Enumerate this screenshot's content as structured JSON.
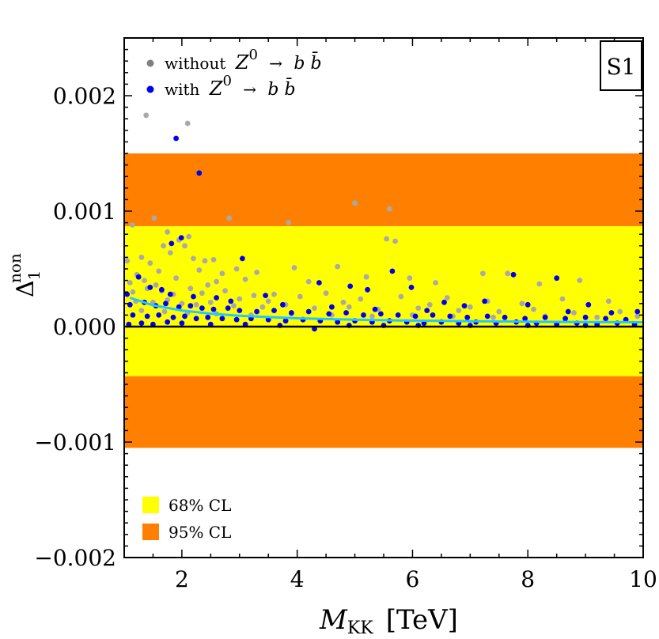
{
  "chart_data": {
    "type": "scatter",
    "title": "",
    "panel_tag": "S1",
    "xlabel": {
      "main": "M",
      "sub": "KK",
      "unit": "[TeV]"
    },
    "ylabel": {
      "main": "Δ",
      "sub": "1",
      "sup": "non"
    },
    "xlim": [
      1,
      10
    ],
    "ylim": [
      -0.002,
      0.0025
    ],
    "xticks": [
      2,
      4,
      6,
      8,
      10
    ],
    "xtick_labels": [
      "2",
      "4",
      "6",
      "8",
      "10"
    ],
    "yticks": [
      -0.002,
      -0.001,
      0.0,
      0.001,
      0.002
    ],
    "ytick_labels": [
      "−0.002",
      "−0.001",
      "0.000",
      "0.001",
      "0.002"
    ],
    "bands": [
      {
        "name": "95% CL",
        "color": "#ff8000",
        "y_from": -0.00105,
        "y_to": 0.0015
      },
      {
        "name": "68% CL",
        "color": "#ffff00",
        "y_from": -0.00043,
        "y_to": 0.00087
      }
    ],
    "reference_line": {
      "y": 0.0,
      "color": "#000000"
    },
    "curve": {
      "name": "fit",
      "color": "#22c8ff",
      "x": [
        1.1,
        1.5,
        2.0,
        2.5,
        3.0,
        4.0,
        5.0,
        6.0,
        7.0,
        8.0,
        9.0,
        10.0
      ],
      "y": [
        0.00025,
        0.000185,
        0.00014,
        0.000112,
        9.4e-05,
        7.2e-05,
        6e-05,
        5.2e-05,
        4.7e-05,
        4.3e-05,
        4e-05,
        3.8e-05
      ]
    },
    "series": [
      {
        "name": "without Z0 → b b̄",
        "color": "#a9a9a9",
        "points": [
          [
            1.38,
            0.00183
          ],
          [
            2.1,
            0.00176
          ],
          [
            1.52,
            0.00094
          ],
          [
            1.14,
            0.00088
          ],
          [
            2.82,
            0.00094
          ],
          [
            3.85,
            0.0009
          ],
          [
            5.0,
            0.00107
          ],
          [
            5.6,
            0.00102
          ],
          [
            1.75,
            0.00082
          ],
          [
            1.68,
            0.0007
          ],
          [
            1.8,
            0.00064
          ],
          [
            1.05,
            0.00057
          ],
          [
            1.3,
            0.0006
          ],
          [
            2.05,
            0.0007
          ],
          [
            2.12,
            0.00078
          ],
          [
            1.95,
            0.00075
          ],
          [
            2.2,
            0.00059
          ],
          [
            2.4,
            0.00057
          ],
          [
            2.55,
            0.00058
          ],
          [
            1.45,
            0.00055
          ],
          [
            5.55,
            0.00076
          ],
          [
            5.7,
            0.00074
          ],
          [
            1.22,
            0.00045
          ],
          [
            1.6,
            0.00048
          ],
          [
            2.3,
            0.00049
          ],
          [
            2.7,
            0.00046
          ],
          [
            2.95,
            0.0005
          ],
          [
            3.3,
            0.00047
          ],
          [
            3.95,
            0.00051
          ],
          [
            4.7,
            0.00052
          ],
          [
            7.22,
            0.00046
          ],
          [
            7.65,
            0.00046
          ],
          [
            8.2,
            0.00037
          ],
          [
            1.1,
            0.00038
          ],
          [
            1.35,
            0.0004
          ],
          [
            1.9,
            0.00042
          ],
          [
            2.6,
            0.00039
          ],
          [
            3.1,
            0.00041
          ],
          [
            4.2,
            0.00039
          ],
          [
            5.2,
            0.00043
          ],
          [
            5.95,
            0.00042
          ],
          [
            6.4,
            0.00038
          ],
          [
            8.9,
            0.0004
          ],
          [
            1.15,
            0.0003
          ],
          [
            1.4,
            0.00033
          ],
          [
            1.65,
            0.00031
          ],
          [
            1.85,
            0.00028
          ],
          [
            2.15,
            0.00033
          ],
          [
            2.35,
            0.00029
          ],
          [
            2.75,
            0.00031
          ],
          [
            3.25,
            0.00027
          ],
          [
            3.6,
            0.00028
          ],
          [
            4.05,
            0.00026
          ],
          [
            4.5,
            0.00029
          ],
          [
            5.1,
            0.00024
          ],
          [
            5.8,
            0.00026
          ],
          [
            6.6,
            0.00025
          ],
          [
            7.3,
            0.00022
          ],
          [
            8.6,
            0.00024
          ],
          [
            9.4,
            0.00022
          ],
          [
            1.2,
            0.00022
          ],
          [
            1.5,
            0.00021
          ],
          [
            1.75,
            0.00023
          ],
          [
            2.0,
            0.0002
          ],
          [
            2.25,
            0.00019
          ],
          [
            2.5,
            0.00021
          ],
          [
            2.9,
            0.00018
          ],
          [
            3.4,
            0.00017
          ],
          [
            3.8,
            0.00019
          ],
          [
            4.3,
            0.00016
          ],
          [
            4.9,
            0.00017
          ],
          [
            5.4,
            0.00015
          ],
          [
            6.1,
            0.00016
          ],
          [
            6.8,
            0.00014
          ],
          [
            7.5,
            0.00013
          ],
          [
            8.1,
            0.00015
          ],
          [
            8.8,
            0.00012
          ],
          [
            9.6,
            0.00013
          ],
          [
            1.3,
            0.00014
          ],
          [
            1.7,
            0.00013
          ],
          [
            2.1,
            0.00012
          ],
          [
            2.6,
            0.00011
          ],
          [
            3.2,
            0.0001
          ],
          [
            3.9,
            0.00011
          ],
          [
            4.6,
            0.0001
          ],
          [
            5.3,
            9e-05
          ],
          [
            6.0,
            0.0001
          ],
          [
            6.7,
            9e-05
          ],
          [
            7.4,
            8e-05
          ],
          [
            8.3,
            9e-05
          ],
          [
            9.2,
            8e-05
          ],
          [
            9.9,
            9e-05
          ],
          [
            1.55,
            0.00036
          ],
          [
            2.45,
            0.00036
          ],
          [
            3.0,
            0.00024
          ],
          [
            3.5,
            0.00022
          ],
          [
            4.8,
            0.00021
          ],
          [
            6.3,
            0.00019
          ],
          [
            7.0,
            0.00017
          ],
          [
            7.9,
            0.0002
          ]
        ]
      },
      {
        "name": "with Z0 → b b̄",
        "color": "#0000ee",
        "points": [
          [
            1.9,
            0.00163
          ],
          [
            2.3,
            0.00133
          ],
          [
            1.82,
            0.00072
          ],
          [
            1.99,
            0.00077
          ],
          [
            3.05,
            0.00059
          ],
          [
            5.65,
            0.00048
          ],
          [
            7.75,
            0.00045
          ],
          [
            8.5,
            0.00042
          ],
          [
            1.25,
            0.00043
          ],
          [
            4.38,
            0.00038
          ],
          [
            4.92,
            0.00035
          ],
          [
            5.22,
            0.00032
          ],
          [
            5.98,
            0.00034
          ],
          [
            1.45,
            0.00034
          ],
          [
            1.65,
            0.00032
          ],
          [
            1.8,
            0.00028
          ],
          [
            1.05,
            0.00028
          ],
          [
            2.6,
            0.00025
          ],
          [
            3.45,
            0.00027
          ],
          [
            6.55,
            0.00021
          ],
          [
            7.25,
            0.00022
          ],
          [
            8.0,
            0.00019
          ],
          [
            9.05,
            0.00019
          ],
          [
            6.9,
            0.00018
          ],
          [
            9.9,
            0.00013
          ],
          [
            1.1,
            0.00019
          ],
          [
            1.35,
            0.00021
          ],
          [
            1.55,
            0.00018
          ],
          [
            1.72,
            0.0002
          ],
          [
            1.95,
            0.00017
          ],
          [
            2.15,
            0.00018
          ],
          [
            2.35,
            0.00016
          ],
          [
            2.55,
            0.00015
          ],
          [
            2.8,
            0.00016
          ],
          [
            3.0,
            0.00014
          ],
          [
            3.3,
            0.00013
          ],
          [
            3.6,
            0.00014
          ],
          [
            3.9,
            0.00012
          ],
          [
            4.2,
            0.00013
          ],
          [
            4.55,
            0.00011
          ],
          [
            4.85,
            0.00012
          ],
          [
            5.15,
            0.0001
          ],
          [
            5.45,
            0.00011
          ],
          [
            5.75,
            0.0001
          ],
          [
            6.05,
            9e-05
          ],
          [
            6.35,
            0.0001
          ],
          [
            6.65,
            9e-05
          ],
          [
            6.95,
            8e-05
          ],
          [
            7.3,
            9e-05
          ],
          [
            7.6,
            8e-05
          ],
          [
            7.95,
            7e-05
          ],
          [
            8.3,
            8e-05
          ],
          [
            8.65,
            7e-05
          ],
          [
            9.0,
            8e-05
          ],
          [
            9.35,
            7e-05
          ],
          [
            9.7,
            6e-05
          ],
          [
            1.15,
            0.0001
          ],
          [
            1.4,
            9e-05
          ],
          [
            1.6,
            0.0001
          ],
          [
            1.85,
            8e-05
          ],
          [
            2.05,
            9e-05
          ],
          [
            2.25,
            7e-05
          ],
          [
            2.45,
            8e-05
          ],
          [
            2.7,
            7e-05
          ],
          [
            2.95,
            6e-05
          ],
          [
            3.2,
            7e-05
          ],
          [
            3.5,
            6e-05
          ],
          [
            3.8,
            5e-05
          ],
          [
            4.1,
            6e-05
          ],
          [
            4.4,
            5e-05
          ],
          [
            4.7,
            4e-05
          ],
          [
            5.0,
            5e-05
          ],
          [
            5.3,
            4e-05
          ],
          [
            5.6,
            5e-05
          ],
          [
            5.9,
            4e-05
          ],
          [
            6.2,
            3e-05
          ],
          [
            6.5,
            4e-05
          ],
          [
            6.8,
            3e-05
          ],
          [
            7.1,
            4e-05
          ],
          [
            7.45,
            3e-05
          ],
          [
            7.8,
            4e-05
          ],
          [
            8.15,
            3e-05
          ],
          [
            8.5,
            2e-05
          ],
          [
            8.85,
            3e-05
          ],
          [
            9.2,
            2e-05
          ],
          [
            9.55,
            3e-05
          ],
          [
            9.85,
            2e-05
          ],
          [
            1.08,
            2e-05
          ],
          [
            1.3,
            3e-05
          ],
          [
            1.5,
            2e-05
          ],
          [
            1.75,
            4e-05
          ],
          [
            2.0,
            3e-05
          ],
          [
            2.5,
            2e-05
          ],
          [
            3.1,
            2e-05
          ],
          [
            3.7,
            1e-05
          ],
          [
            4.3,
            -2e-05
          ],
          [
            4.9,
            1e-05
          ],
          [
            5.5,
            1e-05
          ],
          [
            6.1,
            1e-05
          ],
          [
            7.0,
            1e-05
          ],
          [
            8.0,
            1e-05
          ],
          [
            9.0,
            1e-05
          ],
          [
            2.2,
            0.00026
          ],
          [
            2.85,
            0.00022
          ],
          [
            3.75,
            0.00019
          ],
          [
            4.6,
            0.00017
          ],
          [
            5.35,
            0.00015
          ],
          [
            6.25,
            0.00014
          ],
          [
            8.7,
            0.00013
          ],
          [
            9.45,
            0.00012
          ]
        ]
      }
    ],
    "legends": {
      "series": [
        {
          "marker_color": "#808080",
          "label": "without",
          "z": "Z",
          "z_sup": "0",
          "arrow": "→",
          "decay": "b b̄"
        },
        {
          "marker_color": "#0000ee",
          "label": "with",
          "z": "Z",
          "z_sup": "0",
          "arrow": "→",
          "decay": "b b̄"
        }
      ],
      "bands": [
        {
          "color": "#ffff00",
          "label": "68% CL"
        },
        {
          "color": "#ff8000",
          "label": "95% CL"
        }
      ]
    }
  }
}
